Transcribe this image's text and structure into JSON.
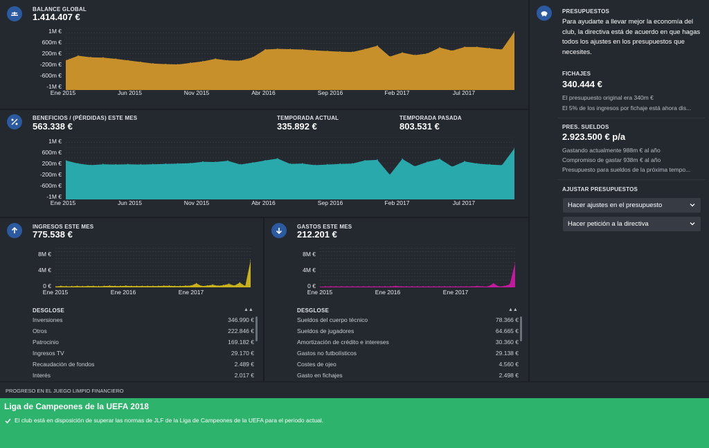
{
  "balance": {
    "label": "BALANCE GLOBAL",
    "value": "1.414.407 €",
    "y_ticks": [
      "1M €",
      "600m €",
      "200m €",
      "-200m €",
      "-600m €",
      "-1M €"
    ],
    "x_ticks": [
      "Ene 2015",
      "Jun 2015",
      "Nov 2015",
      "Abr 2016",
      "Sep 2016",
      "Feb 2017",
      "Jul 2017"
    ]
  },
  "profit": {
    "label": "BENEFICIOS / (PÉRDIDAS) ESTE MES",
    "value": "563.338 €",
    "current_label": "TEMPORADA ACTUAL",
    "current_value": "335.892 €",
    "last_label": "TEMPORADA PASADA",
    "last_value": "803.531 €",
    "y_ticks": [
      "1M €",
      "600m €",
      "200m €",
      "-200m €",
      "-600m €",
      "-1M €"
    ],
    "x_ticks": [
      "Ene 2015",
      "Jun 2015",
      "Nov 2015",
      "Abr 2016",
      "Sep 2016",
      "Feb 2017",
      "Jul 2017"
    ]
  },
  "income": {
    "label": "INGRESOS ESTE MES",
    "value": "775.538 €",
    "y_ticks": [
      "8M €",
      "4M €",
      "0 €"
    ],
    "x_ticks": [
      "Ene 2015",
      "Ene 2016",
      "Ene 2017"
    ],
    "breakdown_label": "DESGLOSE",
    "rows": [
      {
        "name": "Inversiones",
        "value": "346.990 €"
      },
      {
        "name": "Otros",
        "value": "222.846 €"
      },
      {
        "name": "Patrocinio",
        "value": "169.182 €"
      },
      {
        "name": "Ingresos TV",
        "value": "29.170 €"
      },
      {
        "name": "Recaudación de fondos",
        "value": "2.489 €"
      },
      {
        "name": "Interés",
        "value": "2.017 €"
      }
    ]
  },
  "expenses": {
    "label": "GASTOS ESTE MES",
    "value": "212.201 €",
    "y_ticks": [
      "8M €",
      "4M €",
      "0 €"
    ],
    "x_ticks": [
      "Ene 2015",
      "Ene 2016",
      "Ene 2017"
    ],
    "breakdown_label": "DESGLOSE",
    "rows": [
      {
        "name": "Sueldos del cuerpo técnico",
        "value": "78.366 €"
      },
      {
        "name": "Sueldos de jugadores",
        "value": "64.665 €"
      },
      {
        "name": "Amortización de crédito e intereses",
        "value": "30.360 €"
      },
      {
        "name": "Gastos no futbolísticos",
        "value": "29.138 €"
      },
      {
        "name": "Costes de ojeo",
        "value": "4.560 €"
      },
      {
        "name": "Gasto en fichajes",
        "value": "2.498 €"
      }
    ]
  },
  "budgets": {
    "label": "PRESUPUESTOS",
    "intro": "Para ayudarte a llevar mejor la economía del club, la directiva está de acuerdo en que hagas todos los ajustes en los presupuestos que necesites.",
    "transfers_label": "FICHAJES",
    "transfers_value": "340.444 €",
    "transfers_note1": "El presupuesto original era 340m €",
    "transfers_note2": "El 5% de los ingresos por fichaje está ahora dis...",
    "wages_label": "PRES. SUELDOS",
    "wages_value": "2.923.500 € p/a",
    "wages_note1": "Gastando actualmente 988m € al año",
    "wages_note2": "Compromiso de gastar 938m € al año",
    "wages_note3": "Presupuesto para sueldos de la próxima tempo...",
    "adjust_label": "AJUSTAR PRESUPUESTOS",
    "dropdown1": "Hacer ajustes en el presupuesto",
    "dropdown2": "Hacer petición a la directiva"
  },
  "ffp": {
    "strip_label": "PROGRESO EN EL JUEGO LIMPIO FINANCIERO",
    "title": "Liga de Campeones de la UEFA 2018",
    "message": "El club está en disposición de superar las normas de JLF de la Liga de Campeones de la UEFA para el periodo actual."
  },
  "chart_data": [
    {
      "type": "area",
      "title": "BALANCE GLOBAL",
      "ylim": [
        -1000000,
        1000000
      ],
      "color": "#c8902a",
      "series": [
        {
          "values": [
            -50000,
            100000,
            50000,
            40000,
            0,
            -50000,
            -100000,
            -150000,
            -170000,
            -180000,
            -130000,
            -80000,
            0,
            -50000,
            -60000,
            50000,
            300000,
            320000,
            310000,
            300000,
            270000,
            250000,
            230000,
            220000,
            310000,
            420000,
            70000,
            200000,
            120000,
            170000,
            360000,
            260000,
            380000,
            380000,
            340000,
            300000,
            870000
          ]
        }
      ]
    },
    {
      "type": "area",
      "title": "BENEFICIOS / (PÉRDIDAS) ESTE MES",
      "ylim": [
        -1000000,
        1000000
      ],
      "color": "#2aa9ad",
      "series": [
        {
          "values": [
            250000,
            150000,
            100000,
            130000,
            120000,
            130000,
            120000,
            130000,
            140000,
            150000,
            160000,
            210000,
            200000,
            240000,
            120000,
            180000,
            250000,
            310000,
            140000,
            150000,
            100000,
            120000,
            140000,
            150000,
            250000,
            270000,
            -210000,
            300000,
            60000,
            200000,
            300000,
            50000,
            220000,
            150000,
            120000,
            100000,
            640000
          ]
        }
      ]
    },
    {
      "type": "area",
      "title": "INGRESOS ESTE MES",
      "ylim": [
        0,
        10000000
      ],
      "color": "#c7b21c",
      "series": [
        {
          "values": [
            200000,
            300000,
            250000,
            250000,
            300000,
            250000,
            300000,
            300000,
            250000,
            300000,
            350000,
            300000,
            300000,
            350000,
            300000,
            300000,
            300000,
            300000,
            300000,
            300000,
            350000,
            350000,
            300000,
            300000,
            350000,
            400000,
            900000,
            300000,
            400000,
            600000,
            350000,
            500000,
            800000,
            400000,
            1100000,
            300000,
            6300000
          ]
        }
      ]
    },
    {
      "type": "area",
      "title": "GASTOS ESTE MES",
      "ylim": [
        0,
        10000000
      ],
      "color": "#c21a9c",
      "series": [
        {
          "values": [
            150000,
            200000,
            200000,
            200000,
            200000,
            200000,
            200000,
            200000,
            200000,
            200000,
            200000,
            200000,
            200000,
            200000,
            300000,
            200000,
            200000,
            200000,
            200000,
            200000,
            200000,
            200000,
            200000,
            200000,
            200000,
            200000,
            200000,
            200000,
            200000,
            300000,
            200000,
            200000,
            900000,
            200000,
            300000,
            700000,
            5700000
          ]
        }
      ]
    }
  ]
}
